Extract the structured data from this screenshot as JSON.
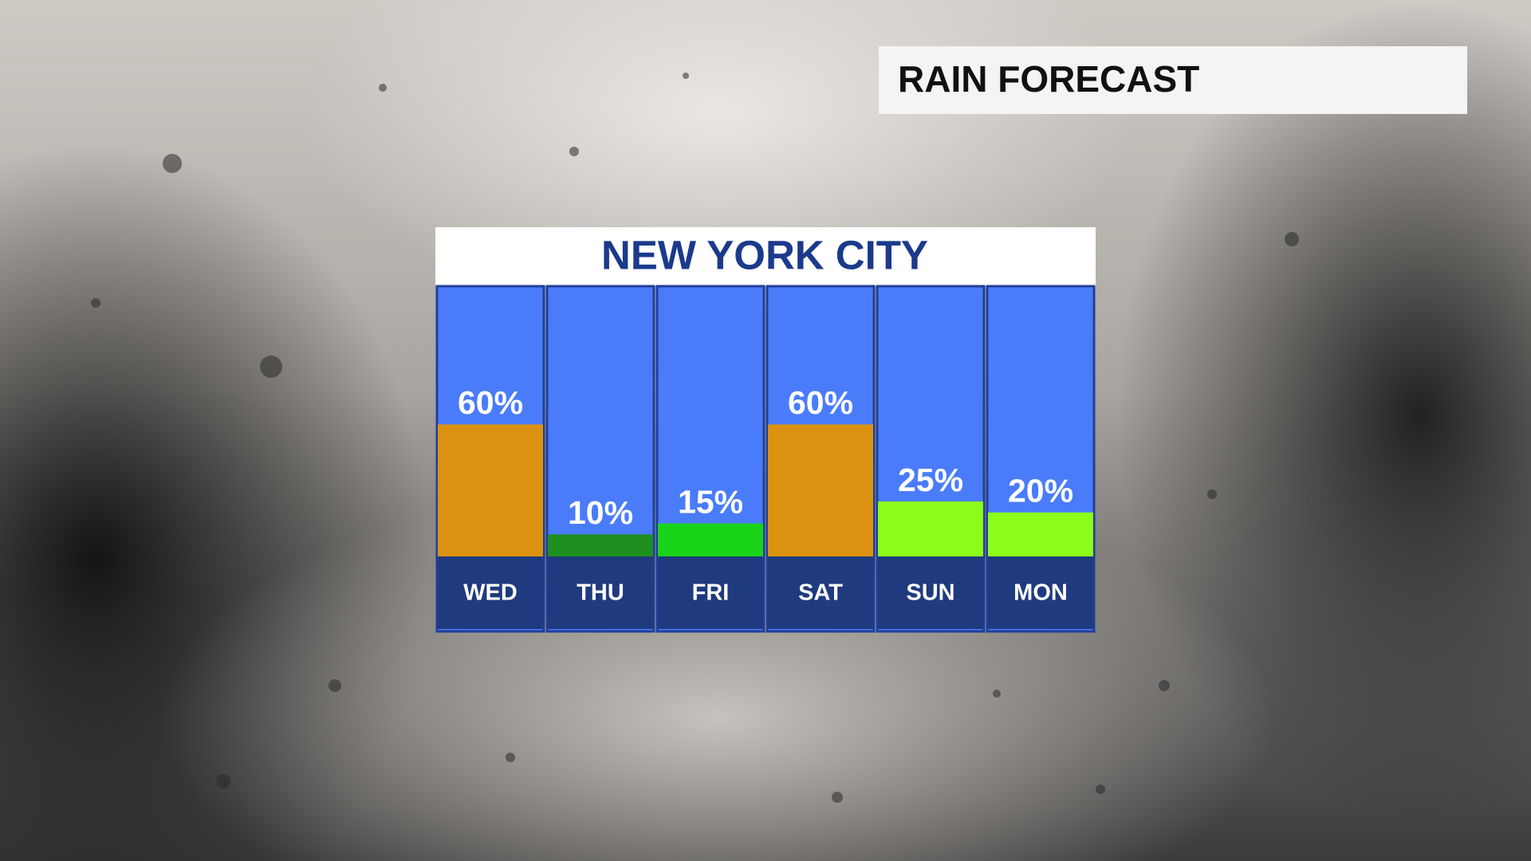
{
  "header_title": "RAIN FORECAST",
  "chart_data": {
    "type": "bar",
    "title": "NEW YORK CITY",
    "categories": [
      "WED",
      "THU",
      "FRI",
      "SAT",
      "SUN",
      "MON"
    ],
    "values": [
      60,
      10,
      15,
      60,
      25,
      20
    ],
    "value_labels": [
      "60%",
      "10%",
      "15%",
      "60%",
      "25%",
      "20%"
    ],
    "colors": [
      "#db9210",
      "#1f8f1f",
      "#1ad41a",
      "#db9210",
      "#8cfd1a",
      "#8cfd1a"
    ]
  }
}
